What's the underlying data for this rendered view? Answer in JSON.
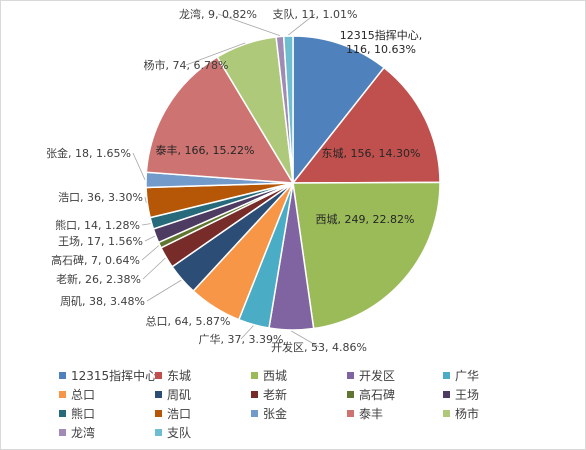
{
  "chart_data": {
    "type": "pie",
    "title": "",
    "start_angle_deg": 0,
    "direction": "clockwise",
    "legend_position": "bottom",
    "slices": [
      {
        "name": "12315指挥中心",
        "value": 116,
        "percent": "10.63%",
        "color": "#4F81BD"
      },
      {
        "name": "东城",
        "value": 156,
        "percent": "14.30%",
        "color": "#C0504D"
      },
      {
        "name": "西城",
        "value": 249,
        "percent": "22.82%",
        "color": "#9BBB59"
      },
      {
        "name": "开发区",
        "value": 53,
        "percent": "4.86%",
        "color": "#8064A2"
      },
      {
        "name": "广华",
        "value": 37,
        "percent": "3.39%",
        "color": "#4BACC6"
      },
      {
        "name": "总口",
        "value": 64,
        "percent": "5.87%",
        "color": "#F79646"
      },
      {
        "name": "周矶",
        "value": 38,
        "percent": "3.48%",
        "color": "#2C4D75"
      },
      {
        "name": "老新",
        "value": 26,
        "percent": "2.38%",
        "color": "#772C2A"
      },
      {
        "name": "高石碑",
        "value": 7,
        "percent": "0.64%",
        "color": "#5F7530"
      },
      {
        "name": "王场",
        "value": 17,
        "percent": "1.56%",
        "color": "#4D3B62"
      },
      {
        "name": "熊口",
        "value": 14,
        "percent": "1.28%",
        "color": "#276A7C"
      },
      {
        "name": "浩口",
        "value": 36,
        "percent": "3.30%",
        "color": "#B65708"
      },
      {
        "name": "张金",
        "value": 18,
        "percent": "1.65%",
        "color": "#729ACA"
      },
      {
        "name": "泰丰",
        "value": 166,
        "percent": "15.22%",
        "color": "#CD7371"
      },
      {
        "name": "杨市",
        "value": 74,
        "percent": "6.78%",
        "color": "#AFC97A"
      },
      {
        "name": "龙湾",
        "value": 9,
        "percent": "0.82%",
        "color": "#A08AB6"
      },
      {
        "name": "支队",
        "value": 11,
        "percent": "1.01%",
        "color": "#6FBDD1"
      }
    ]
  }
}
